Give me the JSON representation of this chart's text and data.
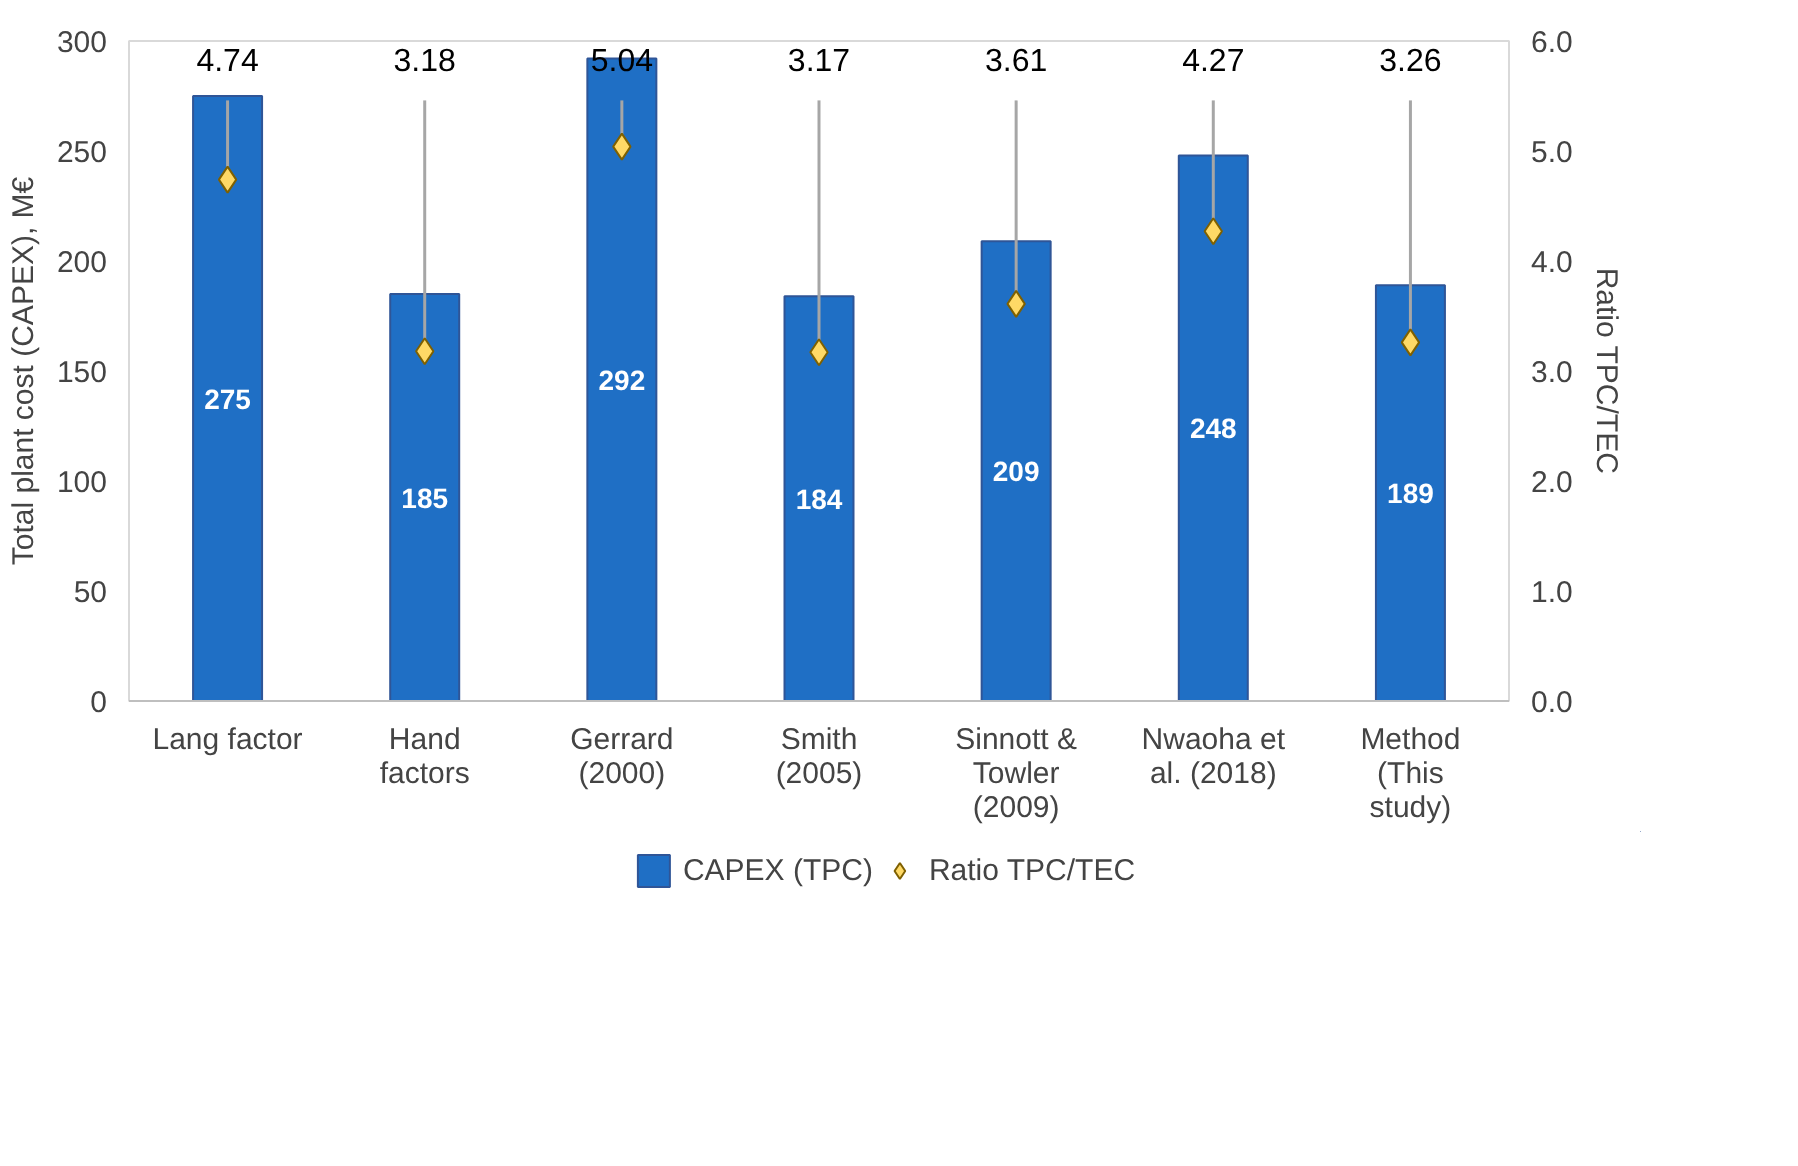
{
  "chart_data": {
    "type": "bar",
    "categories": [
      "Lang factor",
      "Hand factors",
      "Gerrard (2000)",
      "Smith (2005)",
      "Sinnott & Towler (2009)",
      "Nwaoha et al. (2018)",
      "Method (This study)"
    ],
    "series": [
      {
        "name": "CAPEX (TPC)",
        "color": "#1f6fc5",
        "values": [
          275,
          185,
          292,
          184,
          209,
          248,
          189
        ],
        "value_labels": [
          "275",
          "185",
          "292",
          "184",
          "209",
          "248",
          "189"
        ]
      },
      {
        "name": "Ratio TPC/TEC",
        "type": "scatter",
        "axis": "y2",
        "marker": "diamond",
        "color": "#ffd966",
        "values": [
          4.74,
          3.18,
          5.04,
          3.17,
          3.61,
          4.27,
          3.26
        ],
        "value_labels": [
          "4.74",
          "3.18",
          "5.04",
          "3.17",
          "3.61",
          "4.27",
          "3.26"
        ]
      }
    ],
    "ylabel": "Total plant cost (CAPEX), M€",
    "y2label": "Ratio TPC/TEC",
    "ylim": [
      0,
      300
    ],
    "yticks": [
      0,
      50,
      100,
      150,
      200,
      250,
      300
    ],
    "y2lim": [
      0,
      6
    ],
    "y2ticks": [
      {
        "value": 0,
        "label": "0.0"
      },
      {
        "value": 1,
        "label": "1.0"
      },
      {
        "value": 2,
        "label": "2.0"
      },
      {
        "value": 3,
        "label": "3.0"
      },
      {
        "value": 4,
        "label": "4.0"
      },
      {
        "value": 5,
        "label": "5.0"
      },
      {
        "value": 6,
        "label": "6.0"
      }
    ],
    "grid": false,
    "legend": "bottom"
  }
}
